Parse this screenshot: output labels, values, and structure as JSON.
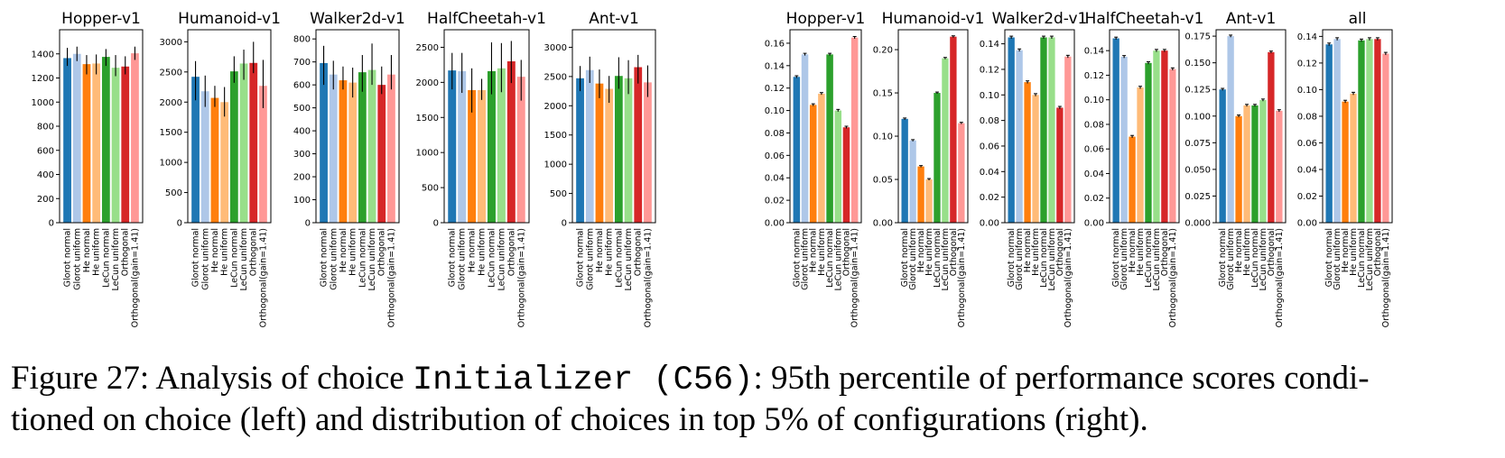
{
  "categories": [
    "Glorot normal",
    "Glorot uniform",
    "He normal",
    "He uniform",
    "LeCun normal",
    "LeCun uniform",
    "Orthogonal",
    "Orthogonal(gain=1.41)"
  ],
  "colors": [
    "#1f77b4",
    "#aec7e8",
    "#ff7f0e",
    "#ffbb78",
    "#2ca02c",
    "#98df8a",
    "#d62728",
    "#ff9896"
  ],
  "caption": {
    "label": "Figure 27: Analysis of choice ",
    "code": "Initializer (C56)",
    "line1_rest": ": 95th percentile of performance scores condi-",
    "line2": "tioned on choice (left) and distribution of choices in top 5% of configurations (right)."
  },
  "chart_data": [
    {
      "type": "bar",
      "title": "Hopper-v1",
      "ylim": [
        0,
        1600
      ],
      "yticks": [
        0,
        200,
        400,
        600,
        800,
        1000,
        1200,
        1400
      ],
      "values": [
        1365,
        1400,
        1315,
        1320,
        1375,
        1285,
        1295,
        1405
      ],
      "err_low": [
        1300,
        1340,
        1230,
        1230,
        1300,
        1215,
        1230,
        1350
      ],
      "err_high": [
        1450,
        1460,
        1390,
        1395,
        1440,
        1390,
        1380,
        1460
      ]
    },
    {
      "type": "bar",
      "title": "Humanoid-v1",
      "ylim": [
        0,
        3200
      ],
      "yticks": [
        0,
        500,
        1000,
        1500,
        2000,
        2500,
        3000
      ],
      "values": [
        2420,
        2180,
        2070,
        2000,
        2510,
        2640,
        2650,
        2270
      ],
      "err_low": [
        2030,
        1920,
        1920,
        1760,
        2320,
        2370,
        2480,
        1900
      ],
      "err_high": [
        2680,
        2440,
        2270,
        2250,
        2760,
        2870,
        3000,
        2700
      ]
    },
    {
      "type": "bar",
      "title": "Walker2d-v1",
      "ylim": [
        0,
        840
      ],
      "yticks": [
        0,
        100,
        200,
        300,
        400,
        500,
        600,
        700,
        800
      ],
      "values": [
        695,
        645,
        620,
        610,
        655,
        665,
        600,
        645
      ],
      "err_low": [
        600,
        580,
        580,
        545,
        570,
        600,
        560,
        580
      ],
      "err_high": [
        770,
        705,
        680,
        675,
        730,
        780,
        680,
        730
      ]
    },
    {
      "type": "bar",
      "title": "HalfCheetah-v1",
      "ylim": [
        0,
        2750
      ],
      "yticks": [
        0,
        500,
        1000,
        1500,
        2000,
        2500
      ],
      "values": [
        2170,
        2160,
        1890,
        1890,
        2160,
        2200,
        2300,
        2080
      ],
      "err_low": [
        1900,
        1850,
        1570,
        1750,
        1830,
        1860,
        1990,
        1740
      ],
      "err_high": [
        2420,
        2420,
        2200,
        2050,
        2570,
        2560,
        2590,
        2320
      ]
    },
    {
      "type": "bar",
      "title": "Ant-v1",
      "ylim": [
        0,
        3300
      ],
      "yticks": [
        0,
        500,
        1000,
        1500,
        2000,
        2500,
        3000
      ],
      "values": [
        2470,
        2610,
        2380,
        2290,
        2510,
        2470,
        2660,
        2400
      ],
      "err_low": [
        2250,
        2390,
        2130,
        2050,
        2290,
        2200,
        2380,
        2150
      ],
      "err_high": [
        2680,
        2840,
        2620,
        2510,
        2830,
        2780,
        2870,
        2690
      ]
    },
    {
      "type": "bar",
      "title": "Hopper-v1",
      "ylim": [
        0,
        0.172
      ],
      "yticks": [
        0,
        0.02,
        0.04,
        0.06,
        0.08,
        0.1,
        0.12,
        0.14,
        0.16
      ],
      "decimals": 2,
      "values": [
        0.13,
        0.15,
        0.105,
        0.115,
        0.15,
        0.1,
        0.085,
        0.165
      ],
      "err_low": [
        0.129,
        0.149,
        0.104,
        0.114,
        0.149,
        0.099,
        0.084,
        0.164
      ],
      "err_high": [
        0.131,
        0.151,
        0.106,
        0.116,
        0.151,
        0.101,
        0.086,
        0.166
      ]
    },
    {
      "type": "bar",
      "title": "Humanoid-v1",
      "ylim": [
        0,
        0.223
      ],
      "yticks": [
        0,
        0.05,
        0.1,
        0.15,
        0.2
      ],
      "decimals": 2,
      "values": [
        0.12,
        0.095,
        0.065,
        0.05,
        0.15,
        0.19,
        0.215,
        0.115
      ],
      "err_low": [
        0.119,
        0.094,
        0.064,
        0.049,
        0.149,
        0.189,
        0.214,
        0.114
      ],
      "err_high": [
        0.121,
        0.096,
        0.066,
        0.051,
        0.151,
        0.191,
        0.216,
        0.116
      ]
    },
    {
      "type": "bar",
      "title": "Walker2d-v1",
      "ylim": [
        0,
        0.151
      ],
      "yticks": [
        0,
        0.02,
        0.04,
        0.06,
        0.08,
        0.1,
        0.12,
        0.14
      ],
      "decimals": 2,
      "values": [
        0.145,
        0.135,
        0.11,
        0.1,
        0.145,
        0.145,
        0.09,
        0.13
      ],
      "err_low": [
        0.144,
        0.134,
        0.109,
        0.099,
        0.144,
        0.144,
        0.089,
        0.129
      ],
      "err_high": [
        0.146,
        0.136,
        0.111,
        0.101,
        0.146,
        0.146,
        0.091,
        0.131
      ]
    },
    {
      "type": "bar",
      "title": "HalfCheetah-v1",
      "ylim": [
        0,
        0.157
      ],
      "yticks": [
        0,
        0.02,
        0.04,
        0.06,
        0.08,
        0.1,
        0.12,
        0.14
      ],
      "decimals": 2,
      "values": [
        0.15,
        0.135,
        0.07,
        0.11,
        0.13,
        0.14,
        0.14,
        0.125
      ],
      "err_low": [
        0.149,
        0.134,
        0.069,
        0.109,
        0.129,
        0.139,
        0.139,
        0.124
      ],
      "err_high": [
        0.151,
        0.136,
        0.071,
        0.111,
        0.131,
        0.141,
        0.141,
        0.126
      ]
    },
    {
      "type": "bar",
      "title": "Ant-v1",
      "ylim": [
        0,
        0.181
      ],
      "yticks": [
        0,
        0.025,
        0.05,
        0.075,
        0.1,
        0.125,
        0.15,
        0.175
      ],
      "decimals": 3,
      "values": [
        0.125,
        0.175,
        0.1,
        0.11,
        0.11,
        0.115,
        0.16,
        0.105
      ],
      "err_low": [
        0.124,
        0.174,
        0.099,
        0.109,
        0.109,
        0.114,
        0.159,
        0.104
      ],
      "err_high": [
        0.126,
        0.176,
        0.101,
        0.111,
        0.111,
        0.116,
        0.161,
        0.106
      ]
    },
    {
      "type": "bar",
      "title": "all",
      "ylim": [
        0,
        0.145
      ],
      "yticks": [
        0,
        0.02,
        0.04,
        0.06,
        0.08,
        0.1,
        0.12,
        0.14
      ],
      "decimals": 2,
      "values": [
        0.134,
        0.138,
        0.091,
        0.097,
        0.137,
        0.138,
        0.138,
        0.127
      ],
      "err_low": [
        0.133,
        0.137,
        0.09,
        0.096,
        0.136,
        0.137,
        0.137,
        0.126
      ],
      "err_high": [
        0.135,
        0.139,
        0.092,
        0.098,
        0.138,
        0.139,
        0.139,
        0.128
      ]
    }
  ]
}
